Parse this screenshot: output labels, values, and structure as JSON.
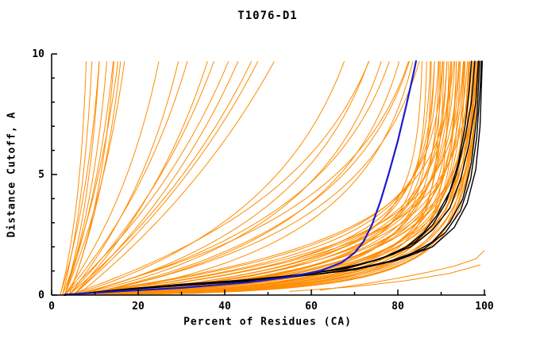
{
  "chart_data": {
    "type": "line",
    "title": "T1076-D1",
    "xlabel": "Percent of Residues (CA)",
    "ylabel": "Distance Cutoff, A",
    "xlim": [
      0,
      100
    ],
    "ylim": [
      0,
      10
    ],
    "grid": false,
    "legend": "none",
    "xticks_major": [
      0,
      20,
      40,
      60,
      80,
      100
    ],
    "xticks_minor": [
      10,
      30,
      50,
      70,
      90
    ],
    "yticks_major": [
      0,
      5,
      10
    ],
    "yticks_minor": [
      1,
      2,
      3,
      4,
      6,
      7,
      8,
      9
    ],
    "colors": {
      "orange": "#FF8C00",
      "black": "#000000",
      "blue": "#1a1acd",
      "axis": "#000000"
    },
    "y_draw_max": 9.7,
    "series": {
      "orange_model_curves": {
        "color_key": "orange",
        "param_curves": [
          [
            2,
            9,
            5,
            1
          ],
          [
            2.5,
            11,
            6,
            1
          ],
          [
            3,
            13,
            6,
            1
          ],
          [
            2,
            14,
            7,
            1
          ],
          [
            3,
            16,
            7,
            1
          ],
          [
            4,
            17,
            6,
            1
          ],
          [
            3,
            19,
            8,
            1
          ],
          [
            4,
            21,
            8,
            1
          ],
          [
            2.5,
            22,
            9,
            1
          ],
          [
            3,
            24,
            9,
            1
          ],
          [
            3,
            34,
            8,
            1
          ],
          [
            4,
            40,
            8,
            1
          ],
          [
            3,
            46,
            9,
            1
          ],
          [
            5,
            52,
            9,
            1
          ],
          [
            4,
            58,
            10,
            1
          ],
          [
            3,
            64,
            10,
            1
          ],
          [
            5,
            70,
            11,
            1
          ],
          [
            4,
            76,
            11,
            1
          ],
          [
            5,
            82,
            12,
            1
          ],
          [
            6,
            88,
            12,
            1
          ],
          [
            4,
            80,
            5,
            0.9
          ],
          [
            5,
            84,
            4.5,
            0.9
          ],
          [
            4,
            86,
            4,
            0.85
          ],
          [
            5,
            88,
            3.5,
            0.85
          ],
          [
            6,
            90,
            3,
            0.8
          ],
          [
            4,
            85,
            5,
            1
          ],
          [
            5,
            90,
            4,
            1
          ],
          [
            6,
            92,
            3.5,
            0.9
          ],
          [
            5,
            87,
            4.2,
            0.95
          ],
          [
            6,
            91,
            3.8,
            0.9
          ],
          [
            3,
            86,
            1.2,
            0.8
          ],
          [
            3,
            87,
            1.0,
            0.75
          ],
          [
            4,
            88,
            1.4,
            0.85
          ],
          [
            3,
            88,
            0.8,
            0.7
          ],
          [
            4,
            89,
            1.6,
            0.9
          ],
          [
            3,
            89,
            1.1,
            0.75
          ],
          [
            4,
            90,
            0.9,
            0.7
          ],
          [
            3,
            90,
            1.8,
            0.95
          ],
          [
            4,
            90,
            0.6,
            0.65
          ],
          [
            3,
            91,
            1.3,
            0.8
          ],
          [
            4,
            91,
            2.0,
            1
          ],
          [
            3,
            91,
            0.7,
            0.65
          ],
          [
            4,
            92,
            1.5,
            0.85
          ],
          [
            3,
            92,
            1.0,
            0.7
          ],
          [
            4,
            92,
            0.5,
            0.6
          ],
          [
            3,
            93,
            1.7,
            0.9
          ],
          [
            4,
            93,
            1.2,
            0.75
          ],
          [
            3,
            93,
            0.8,
            0.65
          ],
          [
            4,
            94,
            2.2,
            1
          ],
          [
            3,
            94,
            1.4,
            0.8
          ],
          [
            4,
            94,
            0.9,
            0.7
          ],
          [
            3,
            94,
            0.6,
            0.6
          ],
          [
            4,
            95,
            1.6,
            0.85
          ],
          [
            3,
            95,
            1.1,
            0.72
          ],
          [
            4,
            95,
            0.7,
            0.62
          ],
          [
            3,
            96,
            1.9,
            0.95
          ],
          [
            4,
            96,
            1.3,
            0.78
          ],
          [
            3,
            96,
            0.85,
            0.66
          ],
          [
            4,
            96,
            0.55,
            0.58
          ],
          [
            3,
            97,
            1.5,
            0.82
          ],
          [
            4,
            97,
            1.05,
            0.72
          ],
          [
            3,
            97,
            0.7,
            0.62
          ],
          [
            4,
            97,
            0.45,
            0.55
          ],
          [
            3,
            98,
            1.8,
            0.9
          ],
          [
            4,
            98,
            1.25,
            0.75
          ],
          [
            3,
            98,
            0.8,
            0.64
          ],
          [
            4,
            98,
            0.5,
            0.56
          ],
          [
            3,
            98.5,
            1.0,
            0.7
          ],
          [
            4,
            98.5,
            0.65,
            0.6
          ],
          [
            3,
            99,
            1.4,
            0.78
          ],
          [
            4,
            99,
            0.9,
            0.66
          ],
          [
            3,
            99,
            0.55,
            0.56
          ],
          [
            4,
            99.3,
            1.1,
            0.7
          ],
          [
            3,
            99.3,
            0.7,
            0.6
          ],
          [
            4,
            99.5,
            0.85,
            0.64
          ],
          [
            3,
            99.5,
            0.5,
            0.54
          ],
          [
            4,
            99.5,
            1.3,
            0.74
          ],
          [
            3,
            99.2,
            0.6,
            0.58
          ]
        ],
        "point_curves": [
          [
            [
              62,
              0.2
            ],
            [
              72,
              0.45
            ],
            [
              80,
              0.7
            ],
            [
              87,
              0.95
            ],
            [
              93,
              1.2
            ],
            [
              98,
              1.5
            ],
            [
              100,
              1.85
            ]
          ],
          [
            [
              55,
              0.15
            ],
            [
              70,
              0.35
            ],
            [
              82,
              0.6
            ],
            [
              92,
              0.9
            ],
            [
              99,
              1.25
            ]
          ]
        ]
      },
      "black_reference_curves": {
        "color_key": "black",
        "point_curves": [
          [
            [
              3,
              0
            ],
            [
              15,
              0.2
            ],
            [
              30,
              0.4
            ],
            [
              45,
              0.6
            ],
            [
              58,
              0.85
            ],
            [
              68,
              1.1
            ],
            [
              76,
              1.5
            ],
            [
              82,
              2.0
            ],
            [
              86,
              2.6
            ],
            [
              89,
              3.3
            ],
            [
              92,
              4.3
            ],
            [
              94,
              5.5
            ],
            [
              95.5,
              7.0
            ],
            [
              96.5,
              8.5
            ],
            [
              97,
              9.7
            ]
          ],
          [
            [
              3,
              0
            ],
            [
              18,
              0.25
            ],
            [
              35,
              0.45
            ],
            [
              50,
              0.7
            ],
            [
              62,
              0.95
            ],
            [
              72,
              1.3
            ],
            [
              79,
              1.7
            ],
            [
              84,
              2.2
            ],
            [
              88,
              2.9
            ],
            [
              91,
              3.8
            ],
            [
              93.5,
              5.0
            ],
            [
              95.5,
              6.5
            ],
            [
              97,
              8.0
            ],
            [
              97.8,
              9.7
            ]
          ],
          [
            [
              3,
              0
            ],
            [
              20,
              0.3
            ],
            [
              40,
              0.55
            ],
            [
              55,
              0.8
            ],
            [
              67,
              1.1
            ],
            [
              76,
              1.5
            ],
            [
              83,
              2.0
            ],
            [
              88,
              2.7
            ],
            [
              92,
              3.6
            ],
            [
              94.5,
              4.8
            ],
            [
              96.5,
              6.3
            ],
            [
              98,
              8.0
            ],
            [
              98.6,
              9.7
            ]
          ],
          [
            [
              3,
              0
            ],
            [
              25,
              0.35
            ],
            [
              48,
              0.6
            ],
            [
              63,
              0.9
            ],
            [
              74,
              1.2
            ],
            [
              82,
              1.6
            ],
            [
              88,
              2.2
            ],
            [
              92,
              3.0
            ],
            [
              95,
              4.0
            ],
            [
              97,
              5.5
            ],
            [
              98.3,
              7.5
            ],
            [
              98.9,
              9.7
            ]
          ],
          [
            [
              3,
              0
            ],
            [
              28,
              0.4
            ],
            [
              52,
              0.7
            ],
            [
              68,
              1.0
            ],
            [
              78,
              1.4
            ],
            [
              86,
              1.9
            ],
            [
              91,
              2.6
            ],
            [
              94.5,
              3.5
            ],
            [
              96.8,
              4.8
            ],
            [
              98.2,
              6.5
            ],
            [
              99,
              8.5
            ],
            [
              99.3,
              9.7
            ]
          ],
          [
            [
              3,
              0
            ],
            [
              30,
              0.45
            ],
            [
              55,
              0.75
            ],
            [
              70,
              1.05
            ],
            [
              80,
              1.45
            ],
            [
              88,
              2.0
            ],
            [
              93,
              2.8
            ],
            [
              96,
              3.8
            ],
            [
              98,
              5.2
            ],
            [
              99,
              7.0
            ],
            [
              99.5,
              9.7
            ]
          ]
        ]
      },
      "blue_highlight_curve": {
        "color_key": "blue",
        "point_curves": [
          [
            [
              3,
              0.02
            ],
            [
              15,
              0.15
            ],
            [
              30,
              0.3
            ],
            [
              45,
              0.52
            ],
            [
              55,
              0.75
            ],
            [
              62,
              1.0
            ],
            [
              67,
              1.35
            ],
            [
              70,
              1.75
            ],
            [
              72,
              2.2
            ],
            [
              74,
              2.9
            ],
            [
              76,
              3.9
            ],
            [
              78,
              5.1
            ],
            [
              80,
              6.4
            ],
            [
              82,
              7.9
            ],
            [
              83.5,
              9.1
            ],
            [
              84.2,
              9.7
            ]
          ]
        ]
      }
    }
  }
}
